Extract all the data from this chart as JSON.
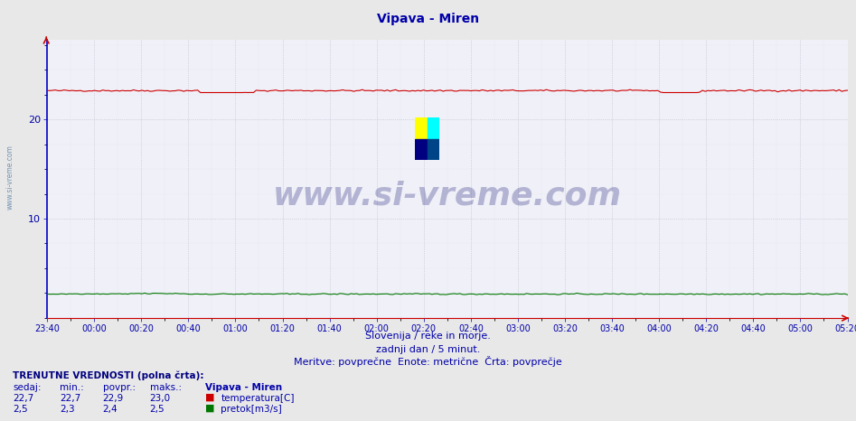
{
  "title": "Vipava - Miren",
  "title_color": "#0000aa",
  "title_fontsize": 10,
  "bg_color": "#e8e8e8",
  "plot_bg_color": "#f0f0f8",
  "grid_color_major": "#bbbbcc",
  "grid_color_minor": "#ddddee",
  "border_color_left": "#0000cc",
  "border_color_bottom": "#cc0000",
  "x_tick_labels": [
    "23:40",
    "00:00",
    "00:20",
    "00:40",
    "01:00",
    "01:20",
    "01:40",
    "02:00",
    "02:20",
    "02:40",
    "03:00",
    "03:20",
    "03:40",
    "04:00",
    "04:20",
    "04:40",
    "05:00",
    "05:20"
  ],
  "ylim": [
    0,
    28
  ],
  "yticks": [
    10,
    20
  ],
  "temp_color": "#cc0000",
  "flow_color": "#007700",
  "temp_value": 22.9,
  "temp_min": 22.7,
  "temp_max": 23.0,
  "flow_value": 2.4,
  "flow_min": 2.3,
  "flow_max": 2.5,
  "n_points": 288,
  "subtitle1": "Slovenija / reke in morje.",
  "subtitle2": "zadnji dan / 5 minut.",
  "subtitle3": "Meritve: povprečne  Enote: metrične  Črta: povprečje",
  "subtitle_color": "#0000aa",
  "bottom_title": "TRENUTNE VREDNOSTI (polna črta):",
  "col_headers": [
    "sedaj:",
    "min.:",
    "povpr.:",
    "maks.:"
  ],
  "row1_vals": [
    "22,7",
    "22,7",
    "22,9",
    "23,0"
  ],
  "row2_vals": [
    "2,5",
    "2,3",
    "2,4",
    "2,5"
  ],
  "label_temp": "temperatura[C]",
  "label_flow": "pretok[m3/s]",
  "watermark": "www.si-vreme.com",
  "watermark_color": "#000066",
  "station_label": "Vipava - Miren",
  "left_watermark": "www.si-vreme.com",
  "left_watermark_color": "#6688aa"
}
